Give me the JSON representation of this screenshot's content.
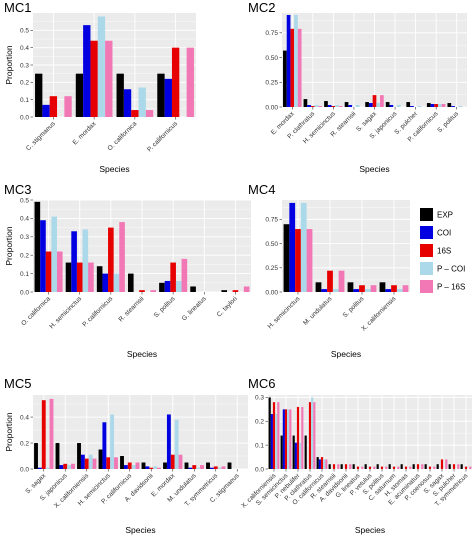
{
  "colors": {
    "EXP": "#000000",
    "COI": "#0000e0",
    "16S": "#e60000",
    "P – COI": "#abd9e9",
    "P – 16S": "#f277b5",
    "panel_bg": "#ebebeb",
    "grid": "#ffffff"
  },
  "legend": {
    "entries": [
      "EXP",
      "COI",
      "16S",
      "P – COI",
      "P – 16S"
    ]
  },
  "chart_data": [
    {
      "type": "bar",
      "title": "MC1",
      "xlabel": "Species",
      "ylabel": "Proportion",
      "ylim": [
        0,
        0.6
      ],
      "yticks": [
        0,
        0.1,
        0.2,
        0.3,
        0.4,
        0.5
      ],
      "ytick_labels": [
        "0.0",
        "0.1",
        "0.2",
        "0.3",
        "0.4",
        "0.5"
      ],
      "grid": true,
      "categories": [
        "C. stigmaeus",
        "E. mordax",
        "O. californica",
        "P. californicus"
      ],
      "series": [
        {
          "name": "EXP",
          "values": [
            0.25,
            0.25,
            0.25,
            0.25
          ]
        },
        {
          "name": "COI",
          "values": [
            0.07,
            0.53,
            0.16,
            0.22
          ]
        },
        {
          "name": "16S",
          "values": [
            0.12,
            0.44,
            0.04,
            0.4
          ]
        },
        {
          "name": "P – COI",
          "values": [
            0.0,
            0.58,
            0.17,
            0.0
          ]
        },
        {
          "name": "P – 16S",
          "values": [
            0.12,
            0.44,
            0.04,
            0.4
          ]
        }
      ]
    },
    {
      "type": "bar",
      "title": "MC2",
      "xlabel": "Species",
      "ylabel": "",
      "ylim": [
        0,
        0.95
      ],
      "yticks": [
        0,
        0.25,
        0.5,
        0.75
      ],
      "ytick_labels": [
        "0.00",
        "0.25",
        "0.50",
        "0.75"
      ],
      "grid": true,
      "categories": [
        "E. mordax",
        "P. clathratus",
        "H. semicinctus",
        "R. stearnsii",
        "S. sagax",
        "S. japonicus",
        "S. pulcher",
        "P. californicus",
        "S. politus"
      ],
      "series": [
        {
          "name": "EXP",
          "values": [
            0.57,
            0.08,
            0.06,
            0.05,
            0.05,
            0.05,
            0.05,
            0.04,
            0.04
          ]
        },
        {
          "name": "COI",
          "values": [
            0.93,
            0.02,
            0.02,
            0.02,
            0.04,
            0.02,
            0.01,
            0.03,
            0.01
          ]
        },
        {
          "name": "16S",
          "values": [
            0.79,
            0.01,
            0.01,
            0.0,
            0.12,
            0.0,
            0.0,
            0.03,
            0.0
          ]
        },
        {
          "name": "P – COI",
          "values": [
            0.93,
            0.02,
            0.02,
            0.02,
            0.04,
            0.02,
            0.01,
            0.03,
            0.01
          ]
        },
        {
          "name": "P – 16S",
          "values": [
            0.79,
            0.01,
            0.01,
            0.0,
            0.12,
            0.0,
            0.0,
            0.03,
            0.0
          ]
        }
      ]
    },
    {
      "type": "bar",
      "title": "MC3",
      "xlabel": "Species",
      "ylabel": "Proportion",
      "ylim": [
        0,
        0.5
      ],
      "yticks": [
        0,
        0.1,
        0.2,
        0.3,
        0.4,
        0.5
      ],
      "ytick_labels": [
        "0.0",
        "0.1",
        "0.2",
        "0.3",
        "0.4",
        "0.5"
      ],
      "grid": true,
      "categories": [
        "O. californica",
        "H. semicinctus",
        "P. californicus",
        "R. stearnsii",
        "S. politus",
        "G. lineatus",
        "C. taylori"
      ],
      "series": [
        {
          "name": "EXP",
          "values": [
            0.49,
            0.16,
            0.14,
            0.1,
            0.05,
            0.03,
            0.01
          ]
        },
        {
          "name": "COI",
          "values": [
            0.39,
            0.33,
            0.1,
            0.0,
            0.06,
            0.0,
            0.0
          ]
        },
        {
          "name": "16S",
          "values": [
            0.22,
            0.16,
            0.35,
            0.01,
            0.16,
            0.0,
            0.01
          ]
        },
        {
          "name": "P – COI",
          "values": [
            0.41,
            0.34,
            0.1,
            0.0,
            0.06,
            0.0,
            0.0
          ]
        },
        {
          "name": "P – 16S",
          "values": [
            0.22,
            0.16,
            0.38,
            0.01,
            0.18,
            0.0,
            0.03
          ]
        }
      ]
    },
    {
      "type": "bar",
      "title": "MC4",
      "xlabel": "Species",
      "ylabel": "",
      "ylim": [
        0,
        0.95
      ],
      "yticks": [
        0,
        0.25,
        0.5,
        0.75
      ],
      "ytick_labels": [
        "0.00",
        "0.25",
        "0.50",
        "0.75"
      ],
      "grid": true,
      "categories": [
        "H. semicinctus",
        "M. undulatus",
        "S. politus",
        "X. californiensis"
      ],
      "series": [
        {
          "name": "EXP",
          "values": [
            0.7,
            0.1,
            0.1,
            0.1
          ]
        },
        {
          "name": "COI",
          "values": [
            0.92,
            0.03,
            0.03,
            0.03
          ]
        },
        {
          "name": "16S",
          "values": [
            0.65,
            0.22,
            0.07,
            0.07
          ]
        },
        {
          "name": "P – COI",
          "values": [
            0.92,
            0.03,
            0.03,
            0.03
          ]
        },
        {
          "name": "P – 16S",
          "values": [
            0.65,
            0.22,
            0.07,
            0.07
          ]
        }
      ]
    },
    {
      "type": "bar",
      "title": "MC5",
      "xlabel": "Species",
      "ylabel": "Proportion",
      "ylim": [
        0,
        0.57
      ],
      "yticks": [
        0,
        0.2,
        0.4
      ],
      "ytick_labels": [
        "0.0",
        "0.2",
        "0.4"
      ],
      "grid": true,
      "categories": [
        "S. sagax",
        "S. japonicus",
        "X. californiensis",
        "H. semicinctus",
        "P. californicus",
        "A. davidsonii",
        "E. mordax",
        "M. undulatus",
        "T. symmetricus",
        "C. stigmaeus"
      ],
      "series": [
        {
          "name": "EXP",
          "values": [
            0.2,
            0.2,
            0.2,
            0.15,
            0.1,
            0.05,
            0.05,
            0.05,
            0.05,
            0.05
          ]
        },
        {
          "name": "COI",
          "values": [
            0.01,
            0.03,
            0.11,
            0.36,
            0.03,
            0.02,
            0.42,
            0.01,
            0.01,
            0.0
          ]
        },
        {
          "name": "16S",
          "values": [
            0.53,
            0.04,
            0.08,
            0.09,
            0.05,
            0.01,
            0.11,
            0.03,
            0.02,
            0.0
          ]
        },
        {
          "name": "P – COI",
          "values": [
            0.01,
            0.03,
            0.11,
            0.42,
            0.03,
            0.02,
            0.38,
            0.01,
            0.01,
            0.0
          ]
        },
        {
          "name": "P – 16S",
          "values": [
            0.54,
            0.04,
            0.08,
            0.09,
            0.05,
            0.01,
            0.11,
            0.03,
            0.02,
            0.0
          ]
        }
      ]
    },
    {
      "type": "bar",
      "title": "MC6",
      "xlabel": "Species",
      "ylabel": "",
      "ylim": [
        0,
        0.31
      ],
      "yticks": [
        0,
        0.1,
        0.2,
        0.3
      ],
      "ytick_labels": [
        "0.0",
        "0.1",
        "0.2",
        "0.3"
      ],
      "grid": true,
      "categories": [
        "X. californiensis",
        "S. semicinctus",
        "P. nebulifer",
        "P. clathratus",
        "O. californicus",
        "R. stearnsii",
        "A. davidsonii",
        "G. lineatus",
        "P. vetulus",
        "S. politus",
        "C. saturnum",
        "H. stomas",
        "E. acuminatus",
        "P. coenosus",
        "S. sagax",
        "S. pulcher",
        "T. symmetricus"
      ],
      "series": [
        {
          "name": "EXP",
          "values": [
            0.3,
            0.14,
            0.14,
            0.14,
            0.05,
            0.02,
            0.02,
            0.02,
            0.02,
            0.02,
            0.02,
            0.02,
            0.02,
            0.02,
            0.02,
            0.02,
            0.02
          ]
        },
        {
          "name": "COI",
          "values": [
            0.23,
            0.25,
            0.11,
            0.0,
            0.04,
            0.0,
            0.0,
            0.0,
            0.0,
            0.0,
            0.0,
            0.0,
            0.0,
            0.0,
            0.0,
            0.0,
            0.0
          ]
        },
        {
          "name": "16S",
          "values": [
            0.28,
            0.25,
            0.26,
            0.28,
            0.05,
            0.02,
            0.02,
            0.01,
            0.01,
            0.01,
            0.01,
            0.01,
            0.02,
            0.01,
            0.04,
            0.02,
            0.01
          ]
        },
        {
          "name": "P – COI",
          "values": [
            0.23,
            0.25,
            0.11,
            0.3,
            0.04,
            0.0,
            0.0,
            0.0,
            0.0,
            0.0,
            0.0,
            0.0,
            0.0,
            0.0,
            0.0,
            0.0,
            0.0
          ]
        },
        {
          "name": "P – 16S",
          "values": [
            0.28,
            0.25,
            0.26,
            0.28,
            0.04,
            0.02,
            0.02,
            0.01,
            0.01,
            0.01,
            0.01,
            0.01,
            0.02,
            0.01,
            0.04,
            0.02,
            0.01
          ]
        }
      ]
    }
  ]
}
